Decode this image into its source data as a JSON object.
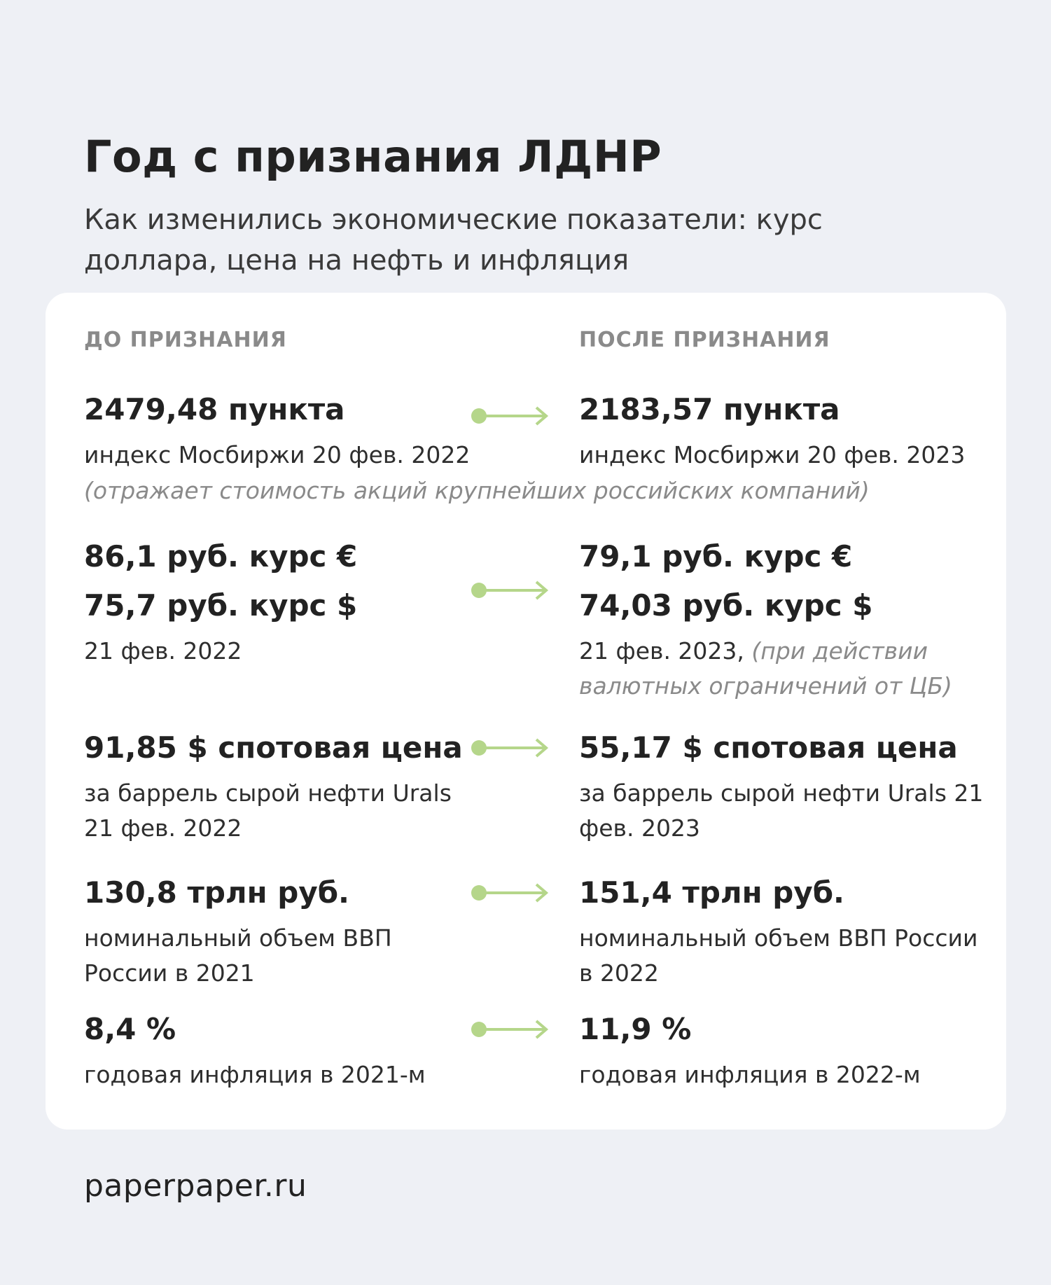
{
  "header": {
    "title": "Год с признания ЛДНР",
    "subtitle": "Как изменились экономические показатели: курс доллара, цена на нефть и инфляция"
  },
  "columns": {
    "before": "ДО ПРИЗНАНИЯ",
    "after": "ПОСЛЕ ПРИЗНАНИЯ"
  },
  "rows": [
    {
      "before": {
        "value": "2479,48 пункта",
        "desc": "индекс Мосбиржи 20 фев. 2022"
      },
      "after": {
        "value": "2183,57 пункта",
        "desc": "индекс Мосбиржи 20 фев. 2023"
      },
      "note": "(отражает стоимость акций крупнейших российских компаний)"
    },
    {
      "before": {
        "value": "86,1 руб. курс €",
        "value2": "75,7 руб. курс $",
        "desc": "21 фев. 2022"
      },
      "after": {
        "value": "79,1 руб. курс €",
        "value2": "74,03 руб. курс $",
        "desc": "21 фев. 2023,",
        "note": "(при действии валютных ограничений от ЦБ)"
      }
    },
    {
      "before": {
        "value": "91,85 $ спотовая цена",
        "desc": "за баррель сырой нефти Urals 21 фев. 2022"
      },
      "after": {
        "value": "55,17 $ спотовая цена",
        "desc": "за баррель сырой нефти Urals 21 фев. 2023"
      }
    },
    {
      "before": {
        "value": "130,8 трлн руб.",
        "desc": "номинальный объем ВВП России в 2021"
      },
      "after": {
        "value": "151,4 трлн руб.",
        "desc": "номинальный объем ВВП России в 2022"
      }
    },
    {
      "before": {
        "value": "8,4 %",
        "desc": "годовая инфляция в 2021-м"
      },
      "after": {
        "value": "11,9 %",
        "desc": "годовая инфляция в 2022-м"
      }
    }
  ],
  "arrow_color": "#b5d68a",
  "footer": "paperpaper.ru"
}
